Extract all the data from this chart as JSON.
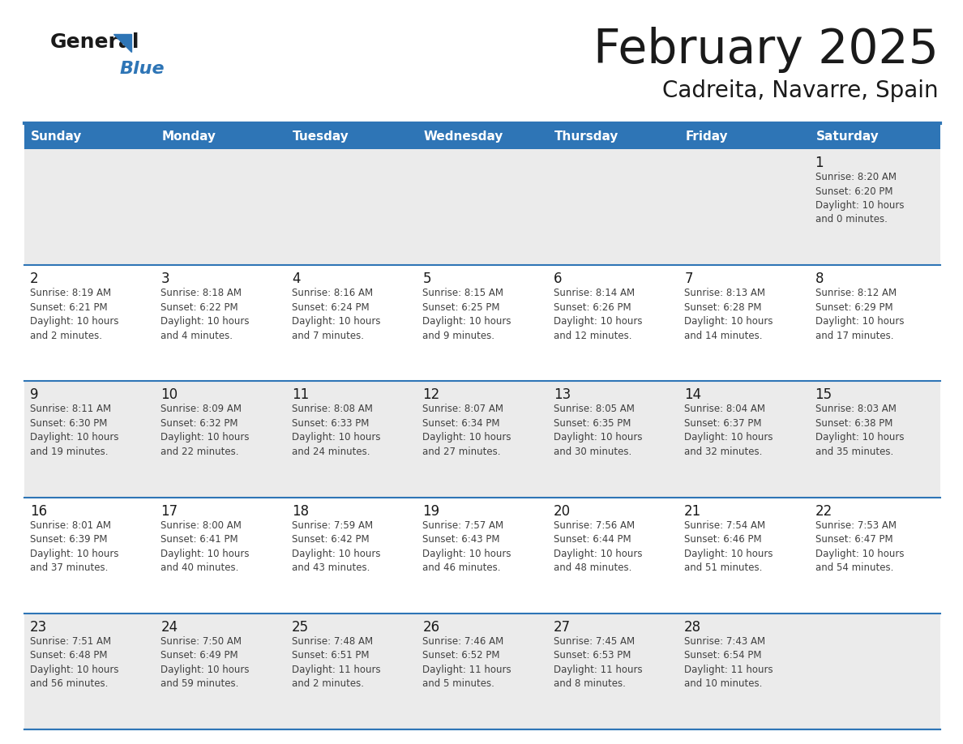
{
  "title": "February 2025",
  "subtitle": "Cadreita, Navarre, Spain",
  "header_bg": "#2E75B6",
  "header_text_color": "#FFFFFF",
  "day_names": [
    "Sunday",
    "Monday",
    "Tuesday",
    "Wednesday",
    "Thursday",
    "Friday",
    "Saturday"
  ],
  "cell_bg_odd": "#EBEBEB",
  "cell_bg_even": "#FFFFFF",
  "separator_color": "#2E75B6",
  "title_color": "#1a1a1a",
  "subtitle_color": "#1a1a1a",
  "day_number_color": "#1a1a1a",
  "cell_text_color": "#404040",
  "logo_general_color": "#1a1a1a",
  "logo_blue_color": "#2E75B6",
  "weeks": [
    [
      {
        "day": null,
        "text": ""
      },
      {
        "day": null,
        "text": ""
      },
      {
        "day": null,
        "text": ""
      },
      {
        "day": null,
        "text": ""
      },
      {
        "day": null,
        "text": ""
      },
      {
        "day": null,
        "text": ""
      },
      {
        "day": 1,
        "text": "Sunrise: 8:20 AM\nSunset: 6:20 PM\nDaylight: 10 hours\nand 0 minutes."
      }
    ],
    [
      {
        "day": 2,
        "text": "Sunrise: 8:19 AM\nSunset: 6:21 PM\nDaylight: 10 hours\nand 2 minutes."
      },
      {
        "day": 3,
        "text": "Sunrise: 8:18 AM\nSunset: 6:22 PM\nDaylight: 10 hours\nand 4 minutes."
      },
      {
        "day": 4,
        "text": "Sunrise: 8:16 AM\nSunset: 6:24 PM\nDaylight: 10 hours\nand 7 minutes."
      },
      {
        "day": 5,
        "text": "Sunrise: 8:15 AM\nSunset: 6:25 PM\nDaylight: 10 hours\nand 9 minutes."
      },
      {
        "day": 6,
        "text": "Sunrise: 8:14 AM\nSunset: 6:26 PM\nDaylight: 10 hours\nand 12 minutes."
      },
      {
        "day": 7,
        "text": "Sunrise: 8:13 AM\nSunset: 6:28 PM\nDaylight: 10 hours\nand 14 minutes."
      },
      {
        "day": 8,
        "text": "Sunrise: 8:12 AM\nSunset: 6:29 PM\nDaylight: 10 hours\nand 17 minutes."
      }
    ],
    [
      {
        "day": 9,
        "text": "Sunrise: 8:11 AM\nSunset: 6:30 PM\nDaylight: 10 hours\nand 19 minutes."
      },
      {
        "day": 10,
        "text": "Sunrise: 8:09 AM\nSunset: 6:32 PM\nDaylight: 10 hours\nand 22 minutes."
      },
      {
        "day": 11,
        "text": "Sunrise: 8:08 AM\nSunset: 6:33 PM\nDaylight: 10 hours\nand 24 minutes."
      },
      {
        "day": 12,
        "text": "Sunrise: 8:07 AM\nSunset: 6:34 PM\nDaylight: 10 hours\nand 27 minutes."
      },
      {
        "day": 13,
        "text": "Sunrise: 8:05 AM\nSunset: 6:35 PM\nDaylight: 10 hours\nand 30 minutes."
      },
      {
        "day": 14,
        "text": "Sunrise: 8:04 AM\nSunset: 6:37 PM\nDaylight: 10 hours\nand 32 minutes."
      },
      {
        "day": 15,
        "text": "Sunrise: 8:03 AM\nSunset: 6:38 PM\nDaylight: 10 hours\nand 35 minutes."
      }
    ],
    [
      {
        "day": 16,
        "text": "Sunrise: 8:01 AM\nSunset: 6:39 PM\nDaylight: 10 hours\nand 37 minutes."
      },
      {
        "day": 17,
        "text": "Sunrise: 8:00 AM\nSunset: 6:41 PM\nDaylight: 10 hours\nand 40 minutes."
      },
      {
        "day": 18,
        "text": "Sunrise: 7:59 AM\nSunset: 6:42 PM\nDaylight: 10 hours\nand 43 minutes."
      },
      {
        "day": 19,
        "text": "Sunrise: 7:57 AM\nSunset: 6:43 PM\nDaylight: 10 hours\nand 46 minutes."
      },
      {
        "day": 20,
        "text": "Sunrise: 7:56 AM\nSunset: 6:44 PM\nDaylight: 10 hours\nand 48 minutes."
      },
      {
        "day": 21,
        "text": "Sunrise: 7:54 AM\nSunset: 6:46 PM\nDaylight: 10 hours\nand 51 minutes."
      },
      {
        "day": 22,
        "text": "Sunrise: 7:53 AM\nSunset: 6:47 PM\nDaylight: 10 hours\nand 54 minutes."
      }
    ],
    [
      {
        "day": 23,
        "text": "Sunrise: 7:51 AM\nSunset: 6:48 PM\nDaylight: 10 hours\nand 56 minutes."
      },
      {
        "day": 24,
        "text": "Sunrise: 7:50 AM\nSunset: 6:49 PM\nDaylight: 10 hours\nand 59 minutes."
      },
      {
        "day": 25,
        "text": "Sunrise: 7:48 AM\nSunset: 6:51 PM\nDaylight: 11 hours\nand 2 minutes."
      },
      {
        "day": 26,
        "text": "Sunrise: 7:46 AM\nSunset: 6:52 PM\nDaylight: 11 hours\nand 5 minutes."
      },
      {
        "day": 27,
        "text": "Sunrise: 7:45 AM\nSunset: 6:53 PM\nDaylight: 11 hours\nand 8 minutes."
      },
      {
        "day": 28,
        "text": "Sunrise: 7:43 AM\nSunset: 6:54 PM\nDaylight: 11 hours\nand 10 minutes."
      },
      {
        "day": null,
        "text": ""
      }
    ]
  ]
}
